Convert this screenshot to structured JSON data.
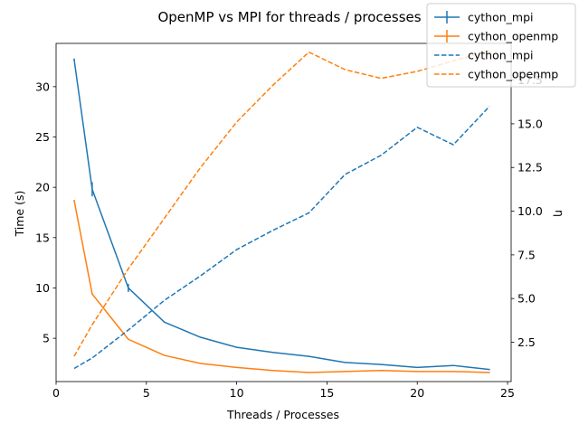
{
  "chart_data": {
    "type": "line",
    "title": "OpenMP vs MPI for threads / processes",
    "xlabel": "Threads / Processes",
    "ylabel": "Time (s)",
    "y2label": "η",
    "xlim": [
      0,
      25.2
    ],
    "ylim": [
      0.7,
      34.3
    ],
    "y2lim": [
      0.25,
      19.6
    ],
    "xticks": [
      0,
      5,
      10,
      15,
      20,
      25
    ],
    "yticks": [
      5,
      10,
      15,
      20,
      25,
      30
    ],
    "y2ticks": [
      2.5,
      5.0,
      7.5,
      10.0,
      12.5,
      15.0,
      17.5
    ],
    "legend_position": "top-right",
    "series": [
      {
        "name": "cython_mpi",
        "axis": "left",
        "style": "solid-errorbar",
        "color": "#1f77b4",
        "x": [
          1,
          2,
          4,
          6,
          8,
          10,
          12,
          14,
          16,
          18,
          20,
          22,
          24
        ],
        "y": [
          32.7,
          19.8,
          10.0,
          6.6,
          5.1,
          4.1,
          3.6,
          3.2,
          2.6,
          2.4,
          2.1,
          2.3,
          1.9
        ],
        "yerr": [
          0.1,
          0.7,
          0.4,
          0.05,
          0.05,
          0.05,
          0.05,
          0.05,
          0.05,
          0.05,
          0.05,
          0.05,
          0.05
        ]
      },
      {
        "name": "cython_openmp",
        "axis": "left",
        "style": "solid-errorbar",
        "color": "#ff7f0e",
        "x": [
          1,
          2,
          4,
          6,
          8,
          10,
          12,
          14,
          16,
          18,
          20,
          22,
          24
        ],
        "y": [
          18.7,
          9.4,
          4.9,
          3.3,
          2.5,
          2.1,
          1.8,
          1.6,
          1.7,
          1.8,
          1.7,
          1.7,
          1.6
        ],
        "yerr": [
          0.05,
          0.05,
          0.05,
          0.05,
          0.05,
          0.05,
          0.05,
          0.05,
          0.05,
          0.05,
          0.05,
          0.05,
          0.05
        ]
      },
      {
        "name": "cython_mpi",
        "axis": "right",
        "style": "dashed",
        "color": "#1f77b4",
        "x": [
          1,
          2,
          4,
          6,
          8,
          10,
          12,
          14,
          16,
          18,
          20,
          22,
          24
        ],
        "y": [
          1.0,
          1.6,
          3.2,
          4.9,
          6.3,
          7.8,
          8.9,
          9.9,
          12.1,
          13.2,
          14.8,
          13.8,
          16.0
        ]
      },
      {
        "name": "cython_openmp",
        "axis": "right",
        "style": "dashed",
        "color": "#ff7f0e",
        "x": [
          1,
          2,
          4,
          6,
          8,
          10,
          12,
          14,
          16,
          18,
          20,
          22,
          24
        ],
        "y": [
          1.7,
          3.5,
          6.7,
          9.6,
          12.5,
          15.1,
          17.2,
          19.1,
          18.1,
          17.6,
          18.0,
          18.6,
          19.2
        ]
      }
    ]
  }
}
